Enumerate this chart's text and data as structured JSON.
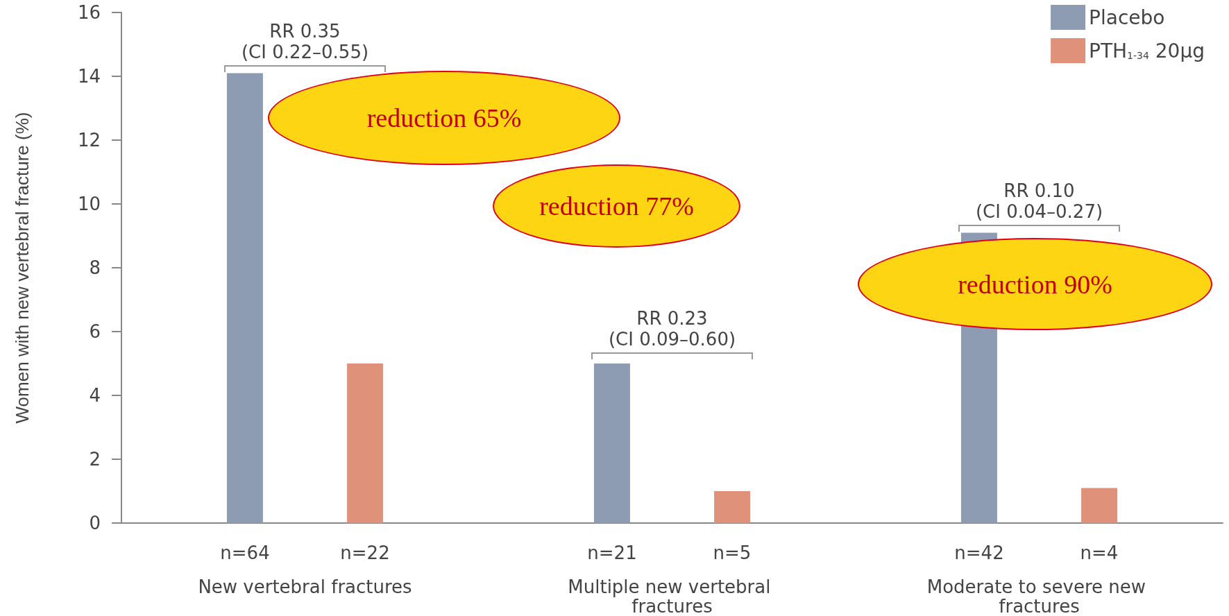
{
  "chart_data": {
    "type": "bar",
    "ylabel": "Women with new vertebral fracture (%)",
    "categories": [
      "New vertebral fractures",
      "Multiple new vertebral fractures",
      "Moderate to severe new fractures"
    ],
    "series": [
      {
        "name": "Placebo",
        "color": "#8d9bb3",
        "values": [
          14.1,
          5.0,
          9.1
        ]
      },
      {
        "name": "PTH$_{1-34}$ 20µg",
        "color": "#e0917a",
        "values": [
          5.0,
          1.0,
          1.1
        ]
      }
    ],
    "ylim": [
      0,
      16
    ],
    "yticks": [
      0,
      2,
      4,
      6,
      8,
      10,
      12,
      14,
      16
    ],
    "grid": false,
    "legend": "top right",
    "annotations": [
      "RR 0.35\n(CI 0.22–0.55)",
      "RR 0.23\n(CI 0.09–0.60)",
      "RR 0.10\n(CI 0.04–0.27)",
      "reduction 65%",
      "reduction 77%",
      "reduction 90%",
      "n=64",
      "n=22",
      "n=21",
      "n=5",
      "n=42",
      "n=4"
    ]
  }
}
